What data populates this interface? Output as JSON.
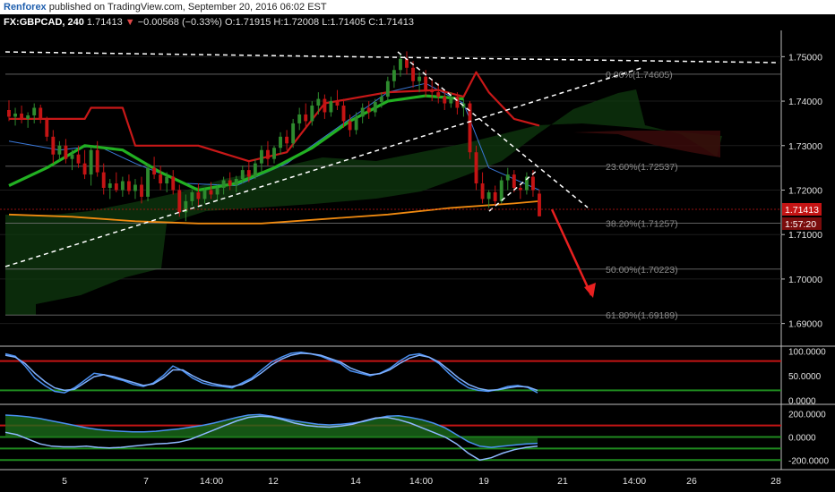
{
  "publisher": {
    "author": "Renforex",
    "text": "published on TradingView.com, September 20, 2016 06:02 EST"
  },
  "symbol_bar": {
    "symbol": "FX:GBPCAD, 240",
    "price": "1.71413",
    "arrow": "▼",
    "change": "−0.00568 (−0.33%)",
    "open": "O:1.71915",
    "high": "H:1.72008",
    "low": "L:1.71405",
    "close": "C:1.71413"
  },
  "colors": {
    "up": "#2e8b2e",
    "down": "#c41414",
    "kijun": "#c81818",
    "ma_green": "#22b022",
    "ma_orange": "#f08a10",
    "tenkan": "#3a78d8",
    "fib": "#6e6e6e"
  },
  "chart_data": [
    {
      "type": "candlestick",
      "panel": "price",
      "x_tick_labels": [
        "5",
        "7",
        "14:00",
        "12",
        "14",
        "14:00",
        "19",
        "21",
        "14:00",
        "26",
        "28"
      ],
      "y_tick_labels": [
        "1.75000",
        "1.74000",
        "1.73000",
        "1.72000",
        "1.71000",
        "1.70000",
        "1.69000"
      ],
      "ylim": [
        1.6855,
        1.7555
      ],
      "last_price_label": "1.71413",
      "countdown_label": "1:57:20",
      "fibonacci": [
        {
          "label": "0.00%(1.74605)",
          "value": 1.74605
        },
        {
          "label": "23.60%(1.72537)",
          "value": 1.72537
        },
        {
          "label": "38.20%(1.71257)",
          "value": 1.71257
        },
        {
          "label": "50.00%(1.70223)",
          "value": 1.70223
        },
        {
          "label": "61.80%(1.69189)",
          "value": 1.69189
        }
      ],
      "candles": [
        [
          1.738,
          1.7402,
          1.7355,
          1.7365
        ],
        [
          1.7365,
          1.7385,
          1.7345,
          1.7372
        ],
        [
          1.7372,
          1.739,
          1.735,
          1.736
        ],
        [
          1.736,
          1.7375,
          1.734,
          1.7368
        ],
        [
          1.7368,
          1.7395,
          1.735,
          1.7385
        ],
        [
          1.7385,
          1.7392,
          1.735,
          1.7358
        ],
        [
          1.7358,
          1.7365,
          1.731,
          1.732
        ],
        [
          1.732,
          1.7335,
          1.726,
          1.728
        ],
        [
          1.728,
          1.731,
          1.7265,
          1.73
        ],
        [
          1.73,
          1.7315,
          1.726,
          1.727
        ],
        [
          1.727,
          1.729,
          1.7245,
          1.728
        ],
        [
          1.728,
          1.73,
          1.725,
          1.726
        ],
        [
          1.726,
          1.729,
          1.7225,
          1.7235
        ],
        [
          1.7235,
          1.73,
          1.721,
          1.729
        ],
        [
          1.729,
          1.731,
          1.723,
          1.724
        ],
        [
          1.724,
          1.726,
          1.719,
          1.7205
        ],
        [
          1.7205,
          1.7225,
          1.718,
          1.7215
        ],
        [
          1.7215,
          1.724,
          1.7195,
          1.72
        ],
        [
          1.72,
          1.723,
          1.7185,
          1.722
        ],
        [
          1.722,
          1.7235,
          1.719,
          1.7198
        ],
        [
          1.7198,
          1.7225,
          1.718,
          1.7212
        ],
        [
          1.7212,
          1.723,
          1.717,
          1.7185
        ],
        [
          1.7185,
          1.726,
          1.7175,
          1.725
        ],
        [
          1.725,
          1.7275,
          1.7225,
          1.7235
        ],
        [
          1.7235,
          1.7255,
          1.72,
          1.7215
        ],
        [
          1.7215,
          1.724,
          1.7195,
          1.723
        ],
        [
          1.723,
          1.7245,
          1.719,
          1.72
        ],
        [
          1.72,
          1.7212,
          1.714,
          1.715
        ],
        [
          1.715,
          1.719,
          1.713,
          1.7175
        ],
        [
          1.7175,
          1.72,
          1.7165,
          1.7195
        ],
        [
          1.7195,
          1.7215,
          1.7165,
          1.718
        ],
        [
          1.718,
          1.7205,
          1.717,
          1.72
        ],
        [
          1.72,
          1.7218,
          1.718,
          1.719
        ],
        [
          1.719,
          1.7212,
          1.7175,
          1.7205
        ],
        [
          1.7205,
          1.723,
          1.719,
          1.7222
        ],
        [
          1.7222,
          1.724,
          1.72,
          1.721
        ],
        [
          1.721,
          1.7232,
          1.7195,
          1.7225
        ],
        [
          1.7225,
          1.7255,
          1.7215,
          1.7245
        ],
        [
          1.7245,
          1.7265,
          1.7218,
          1.723
        ],
        [
          1.723,
          1.727,
          1.7225,
          1.726
        ],
        [
          1.726,
          1.73,
          1.724,
          1.729
        ],
        [
          1.729,
          1.731,
          1.7255,
          1.727
        ],
        [
          1.727,
          1.73,
          1.726,
          1.7295
        ],
        [
          1.7295,
          1.733,
          1.728,
          1.732
        ],
        [
          1.732,
          1.7335,
          1.729,
          1.7305
        ],
        [
          1.7305,
          1.736,
          1.7295,
          1.735
        ],
        [
          1.735,
          1.7385,
          1.7335,
          1.737
        ],
        [
          1.737,
          1.7395,
          1.734,
          1.7355
        ],
        [
          1.7355,
          1.74,
          1.7345,
          1.739
        ],
        [
          1.739,
          1.742,
          1.737,
          1.7405
        ],
        [
          1.7405,
          1.7415,
          1.736,
          1.7375
        ],
        [
          1.7375,
          1.741,
          1.7365,
          1.74
        ],
        [
          1.74,
          1.7425,
          1.738,
          1.739
        ],
        [
          1.739,
          1.7405,
          1.734,
          1.7355
        ],
        [
          1.7355,
          1.737,
          1.732,
          1.7335
        ],
        [
          1.7335,
          1.7375,
          1.7325,
          1.7365
        ],
        [
          1.7365,
          1.7395,
          1.735,
          1.7385
        ],
        [
          1.7385,
          1.74,
          1.736,
          1.7375
        ],
        [
          1.7375,
          1.7405,
          1.7365,
          1.7398
        ],
        [
          1.7398,
          1.742,
          1.7385,
          1.741
        ],
        [
          1.741,
          1.7455,
          1.74,
          1.7445
        ],
        [
          1.7445,
          1.748,
          1.743,
          1.747
        ],
        [
          1.747,
          1.7505,
          1.7455,
          1.7495
        ],
        [
          1.7495,
          1.7512,
          1.746,
          1.7475
        ],
        [
          1.7475,
          1.749,
          1.743,
          1.7445
        ],
        [
          1.7445,
          1.7465,
          1.742,
          1.7455
        ],
        [
          1.7455,
          1.747,
          1.741,
          1.7425
        ],
        [
          1.7425,
          1.745,
          1.74,
          1.742
        ],
        [
          1.742,
          1.744,
          1.7395,
          1.741
        ],
        [
          1.741,
          1.7425,
          1.738,
          1.7395
        ],
        [
          1.7395,
          1.742,
          1.7385,
          1.741
        ],
        [
          1.741,
          1.742,
          1.737,
          1.7385
        ],
        [
          1.7385,
          1.7405,
          1.7365,
          1.7395
        ],
        [
          1.7395,
          1.74,
          1.727,
          1.7285
        ],
        [
          1.7285,
          1.73,
          1.72,
          1.7215
        ],
        [
          1.7215,
          1.724,
          1.717,
          1.718
        ],
        [
          1.718,
          1.72,
          1.716,
          1.7195
        ],
        [
          1.7195,
          1.721,
          1.7165,
          1.7175
        ],
        [
          1.7175,
          1.723,
          1.717,
          1.7222
        ],
        [
          1.7222,
          1.725,
          1.72,
          1.7235
        ],
        [
          1.7235,
          1.7245,
          1.7195,
          1.7205
        ],
        [
          1.7205,
          1.7215,
          1.718,
          1.72
        ],
        [
          1.72,
          1.724,
          1.719,
          1.723
        ],
        [
          1.723,
          1.7245,
          1.7185,
          1.72
        ],
        [
          1.7192,
          1.7201,
          1.7141,
          1.7141
        ]
      ],
      "overlays": {
        "tenkan_kijun_red": [
          [
            0,
            1.736
          ],
          [
            12,
            1.736
          ],
          [
            13,
            1.7385
          ],
          [
            18,
            1.7385
          ],
          [
            20,
            1.73
          ],
          [
            30,
            1.73
          ],
          [
            38,
            1.7265
          ],
          [
            44,
            1.7285
          ],
          [
            50,
            1.7395
          ],
          [
            60,
            1.742
          ],
          [
            68,
            1.7425
          ],
          [
            72,
            1.741
          ],
          [
            74,
            1.7465
          ],
          [
            76,
            1.742
          ],
          [
            80,
            1.736
          ],
          [
            84,
            1.7345
          ]
        ],
        "ma_green": [
          [
            0,
            1.721
          ],
          [
            6,
            1.725
          ],
          [
            12,
            1.73
          ],
          [
            18,
            1.729
          ],
          [
            24,
            1.724
          ],
          [
            30,
            1.72
          ],
          [
            36,
            1.7215
          ],
          [
            42,
            1.725
          ],
          [
            48,
            1.7295
          ],
          [
            54,
            1.7355
          ],
          [
            60,
            1.74
          ],
          [
            66,
            1.7412
          ],
          [
            72,
            1.7405
          ]
        ],
        "ma_orange": [
          [
            0,
            1.7145
          ],
          [
            10,
            1.714
          ],
          [
            20,
            1.713
          ],
          [
            30,
            1.7125
          ],
          [
            40,
            1.7125
          ],
          [
            50,
            1.7135
          ],
          [
            60,
            1.7145
          ],
          [
            70,
            1.716
          ],
          [
            80,
            1.717
          ],
          [
            84,
            1.7175
          ]
        ],
        "tenkan_blue": [
          [
            0,
            1.731
          ],
          [
            8,
            1.729
          ],
          [
            14,
            1.73
          ],
          [
            20,
            1.726
          ],
          [
            28,
            1.7215
          ],
          [
            36,
            1.721
          ],
          [
            44,
            1.726
          ],
          [
            52,
            1.734
          ],
          [
            60,
            1.742
          ],
          [
            66,
            1.744
          ],
          [
            72,
            1.7395
          ],
          [
            76,
            1.725
          ],
          [
            80,
            1.7225
          ],
          [
            84,
            1.72
          ]
        ]
      }
    },
    {
      "type": "line",
      "panel": "stochastic",
      "y_tick_labels": [
        "100.0000",
        "50.0000",
        "0.0000"
      ],
      "ylim": [
        -5,
        105
      ],
      "levels": [
        80,
        20
      ],
      "series": [
        {
          "values": [
            95,
            90,
            70,
            45,
            30,
            18,
            15,
            25,
            40,
            55,
            52,
            45,
            40,
            32,
            28,
            35,
            50,
            70,
            60,
            45,
            35,
            30,
            28,
            25,
            35,
            45,
            62,
            78,
            88,
            96,
            98,
            95,
            90,
            82,
            75,
            60,
            55,
            50,
            55,
            65,
            80,
            92,
            95,
            88,
            75,
            55,
            38,
            25,
            20,
            18,
            22,
            28,
            30,
            26,
            15
          ]
        },
        {
          "values": [
            92,
            88,
            75,
            55,
            38,
            25,
            20,
            22,
            35,
            48,
            52,
            48,
            42,
            36,
            30,
            33,
            45,
            62,
            62,
            50,
            40,
            34,
            30,
            28,
            32,
            42,
            56,
            72,
            84,
            92,
            96,
            95,
            92,
            85,
            78,
            66,
            58,
            52,
            54,
            62,
            75,
            86,
            92,
            88,
            78,
            62,
            45,
            32,
            24,
            20,
            21,
            25,
            28,
            27,
            20
          ]
        }
      ]
    },
    {
      "type": "area",
      "panel": "oscillator",
      "y_tick_labels": [
        "200.0000",
        "0.0000",
        "-200.0000"
      ],
      "ylim": [
        -260,
        260
      ],
      "levels": [
        100,
        0,
        -100,
        -200
      ],
      "series": [
        {
          "values": [
            190,
            185,
            175,
            160,
            140,
            120,
            100,
            80,
            65,
            55,
            50,
            45,
            45,
            50,
            60,
            70,
            85,
            100,
            120,
            145,
            170,
            190,
            195,
            180,
            160,
            140,
            125,
            110,
            105,
            110,
            120,
            135,
            160,
            180,
            185,
            170,
            150,
            120,
            80,
            20,
            -40,
            -80,
            -90,
            -80,
            -70,
            -60,
            -55
          ]
        },
        {
          "values": [
            40,
            20,
            -20,
            -60,
            -80,
            -85,
            -85,
            -80,
            -90,
            -95,
            -90,
            -80,
            -70,
            -60,
            -55,
            -45,
            -20,
            20,
            60,
            100,
            140,
            170,
            180,
            175,
            150,
            120,
            100,
            90,
            85,
            95,
            110,
            140,
            165,
            170,
            150,
            120,
            80,
            40,
            0,
            -60,
            -140,
            -200,
            -180,
            -140,
            -110,
            -90,
            -80
          ]
        }
      ]
    }
  ]
}
